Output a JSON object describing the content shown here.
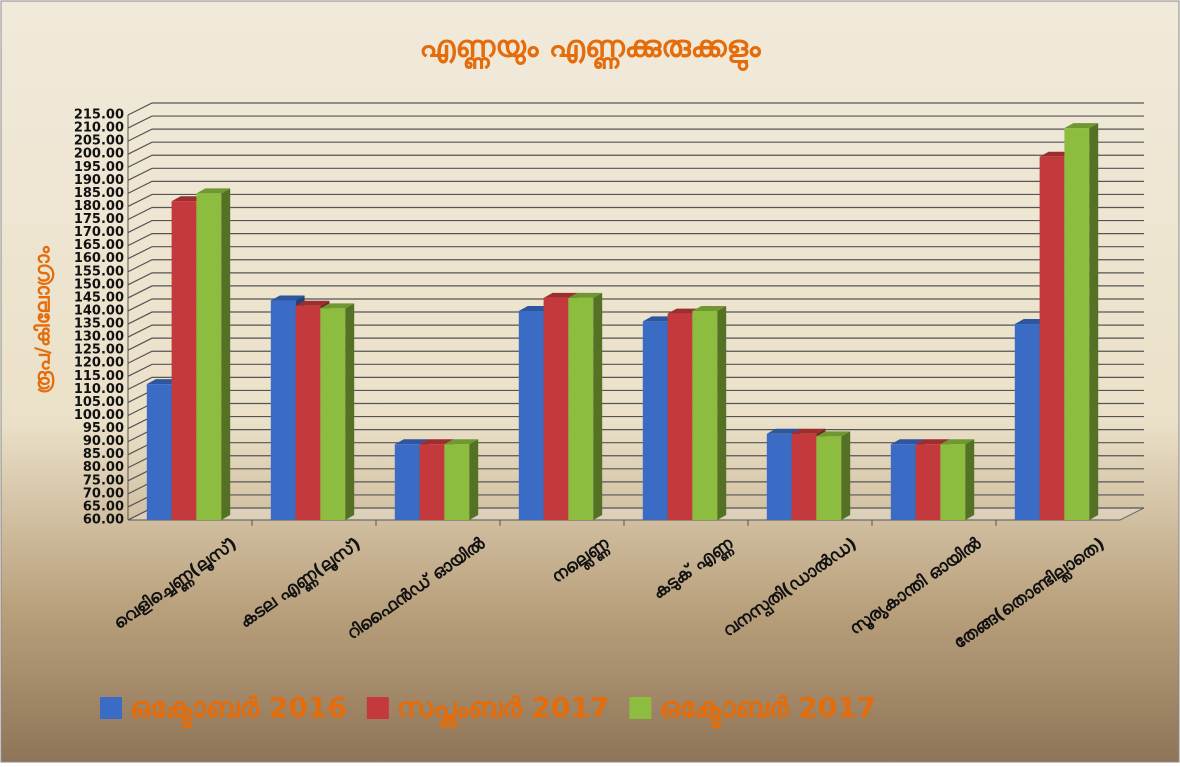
{
  "chart_data": {
    "type": "bar3d",
    "title": "എണ്ണയും എണ്ണക്കുരുക്കളും",
    "y_label": "രൂപ/കിലോഗ്രാം",
    "categories": [
      "വെളിച്ചെണ്ണ(ലൂസ്)",
      "കടല എണ്ണ(ലൂസ്)",
      "റിഫൈൻഡ് ഓയിൽ",
      "നല്ലെണ്ണ",
      "കടുക് എണ്ണ",
      "വനസ്പതി(ഡാൽഡ)",
      "സൂര്യകാന്തി ഓയിൽ",
      "തേങ്ങ(തൊണ്ടില്ലാതെ)"
    ],
    "series": [
      {
        "name": "ഒക്ടോബർ 2016",
        "color": "#3a6cc6",
        "values": [
          112,
          144,
          89,
          140,
          136,
          93,
          89,
          135
        ]
      },
      {
        "name": "സപ്തംബർ 2017",
        "color": "#c43a3c",
        "values": [
          182,
          142,
          89,
          145,
          139,
          93,
          89,
          199
        ]
      },
      {
        "name": "ഒക്ടോബർ 2017",
        "color": "#8dbd3e",
        "values": [
          185,
          141,
          89,
          145,
          140,
          92,
          89,
          210
        ]
      }
    ],
    "ylim": [
      60,
      215
    ],
    "yticks": [
      {
        "value": 60,
        "label": "60.00"
      },
      {
        "value": 65,
        "label": "65.00"
      },
      {
        "value": 70,
        "label": "70.00"
      },
      {
        "value": 75,
        "label": "75.00"
      },
      {
        "value": 80,
        "label": "80.00"
      },
      {
        "value": 85,
        "label": "85.00"
      },
      {
        "value": 90,
        "label": "90.00"
      },
      {
        "value": 95,
        "label": "95.00"
      },
      {
        "value": 100,
        "label": "100.00"
      },
      {
        "value": 105,
        "label": "105.00"
      },
      {
        "value": 110,
        "label": "110.00"
      },
      {
        "value": 115,
        "label": "115.00"
      },
      {
        "value": 120,
        "label": "120.00"
      },
      {
        "value": 125,
        "label": "125.00"
      },
      {
        "value": 130,
        "label": "130.00"
      },
      {
        "value": 135,
        "label": "135.00"
      },
      {
        "value": 140,
        "label": "140.00"
      },
      {
        "value": 145,
        "label": "145.00"
      },
      {
        "value": 150,
        "label": "150.00"
      },
      {
        "value": 155,
        "label": "155.00"
      },
      {
        "value": 160,
        "label": "160.00"
      },
      {
        "value": 165,
        "label": "165.00"
      },
      {
        "value": 170,
        "label": "170.00"
      },
      {
        "value": 175,
        "label": "175.00"
      },
      {
        "value": 180,
        "label": "180.00"
      },
      {
        "value": 185,
        "label": "185.00"
      },
      {
        "value": 190,
        "label": "190.00"
      },
      {
        "value": 195,
        "label": "195.00"
      },
      {
        "value": 200,
        "label": "200.00"
      },
      {
        "value": 205,
        "label": "205.00"
      },
      {
        "value": 210,
        "label": "210.00"
      },
      {
        "value": 215,
        "label": "215.00"
      }
    ],
    "grid": true,
    "legend": "bottom"
  }
}
